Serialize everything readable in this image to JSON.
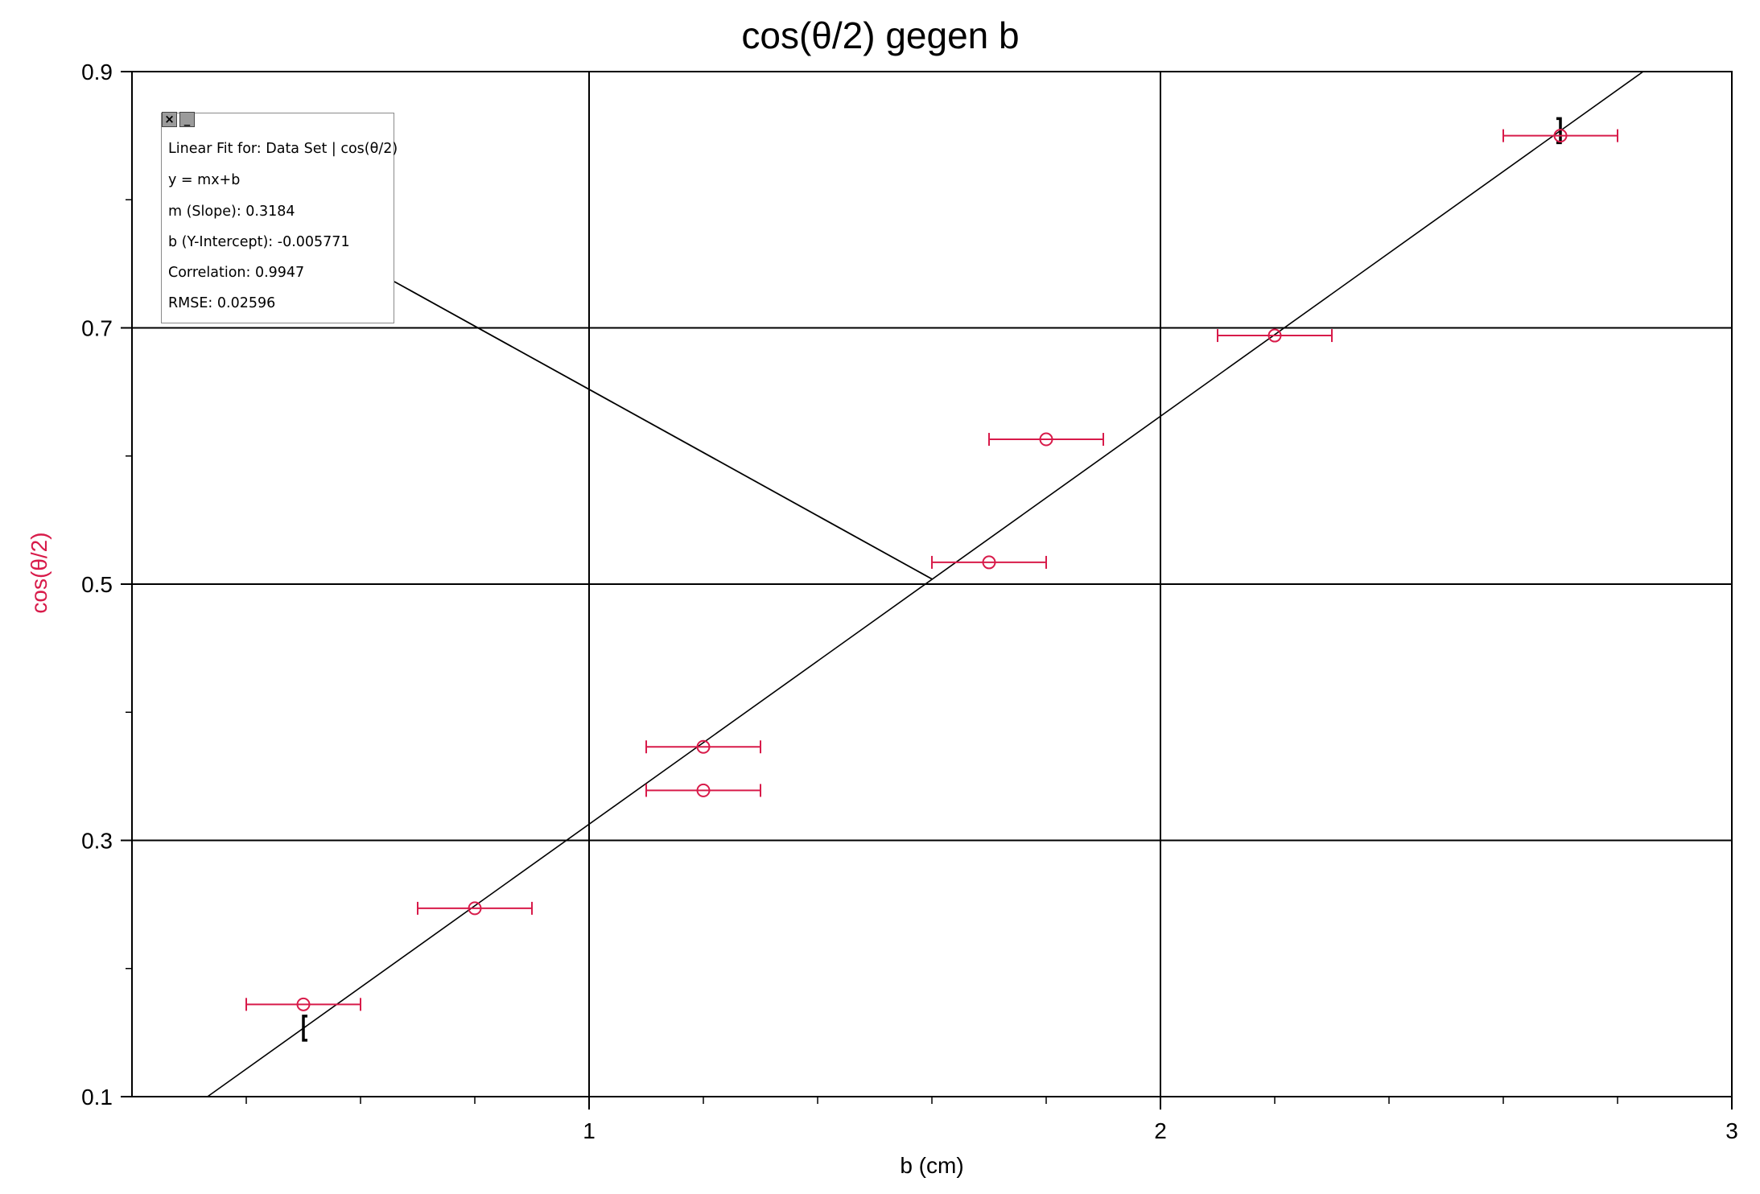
{
  "chart_data": {
    "type": "scatter",
    "title": "cos(θ/2) gegen b",
    "xlabel": "b (cm)",
    "ylabel": "cos(θ/2)",
    "xlim": [
      0.2,
      3.0
    ],
    "ylim": [
      0.1,
      0.9
    ],
    "x_ticks": [
      1,
      2,
      3
    ],
    "y_ticks": [
      0.1,
      0.3,
      0.5,
      0.7,
      0.9
    ],
    "x_minor_step": 0.2,
    "y_minor_step": 0.1,
    "grid": true,
    "series": [
      {
        "points": [
          {
            "x": 0.5,
            "y": 0.172,
            "xerr": 0.1
          },
          {
            "x": 0.8,
            "y": 0.247,
            "xerr": 0.1
          },
          {
            "x": 1.2,
            "y": 0.339,
            "xerr": 0.1
          },
          {
            "x": 1.2,
            "y": 0.373,
            "xerr": 0.1
          },
          {
            "x": 1.7,
            "y": 0.517,
            "xerr": 0.1
          },
          {
            "x": 1.8,
            "y": 0.613,
            "xerr": 0.1
          },
          {
            "x": 2.2,
            "y": 0.694,
            "xerr": 0.1
          },
          {
            "x": 2.7,
            "y": 0.85,
            "xerr": 0.1
          }
        ],
        "color": "#d81b4a"
      }
    ],
    "fit": {
      "slope": 0.3184,
      "intercept": -0.005771,
      "range_brackets": [
        0.5,
        2.7
      ],
      "color": "#000000"
    },
    "annotation": {
      "title": "Linear Fit for: Data Set | cos(θ/2)",
      "equation": "y = mx+b",
      "slope": "m (Slope): 0.3184",
      "intercept": "b (Y-Intercept): -0.005771",
      "correlation": "Correlation: 0.9947",
      "rmse": "RMSE: 0.02596",
      "pointer_target": {
        "x": 1.6,
        "y": 0.504
      }
    },
    "icons": {
      "close": "close-icon",
      "minimize": "minimize-icon"
    }
  }
}
